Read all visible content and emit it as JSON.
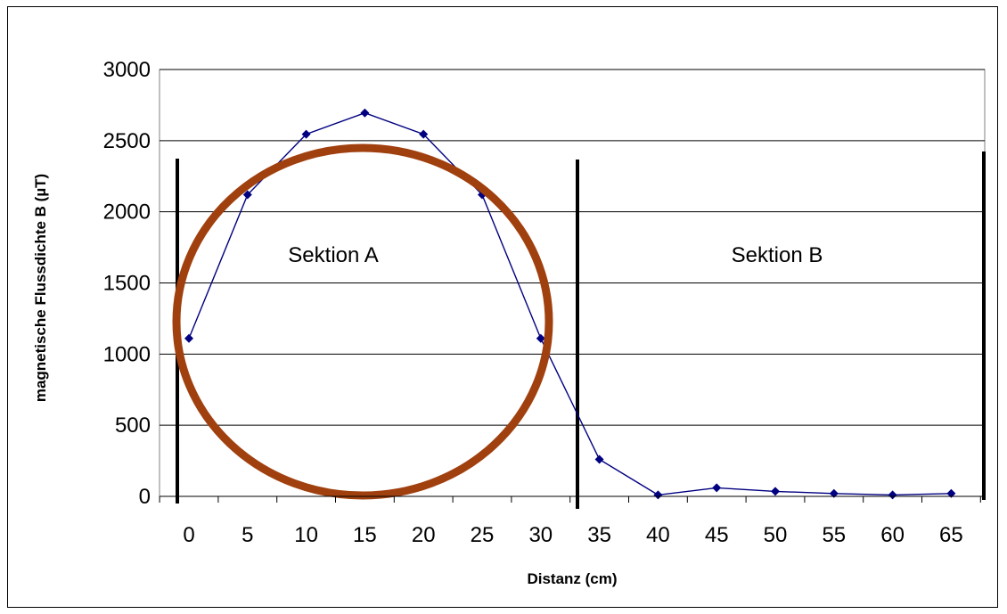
{
  "chart_data": {
    "type": "line",
    "title": "",
    "xlabel": "Distanz (cm)",
    "ylabel": "magnetische Flussdichte B (µT)",
    "categories": [
      "0",
      "5",
      "10",
      "15",
      "20",
      "25",
      "30",
      "35",
      "40",
      "45",
      "50",
      "55",
      "60",
      "65"
    ],
    "x": [
      0,
      5,
      10,
      15,
      20,
      25,
      30,
      35,
      40,
      45,
      50,
      55,
      60,
      65
    ],
    "series": [
      {
        "values": [
          1110,
          2120,
          2545,
          2695,
          2545,
          2120,
          1110,
          260,
          10,
          60,
          35,
          20,
          10,
          20
        ]
      }
    ],
    "ylim": [
      0,
      3000
    ],
    "yticks": [
      0,
      500,
      1000,
      1500,
      2000,
      2500,
      3000
    ],
    "grid": "horizontal",
    "legend": "none",
    "annotations": {
      "section_a": "Sektion A",
      "section_b": "Sektion B"
    },
    "colors": {
      "series": "#000080",
      "circle": "#A0400F",
      "grid": "#000000",
      "plot_border": "#808080"
    }
  }
}
